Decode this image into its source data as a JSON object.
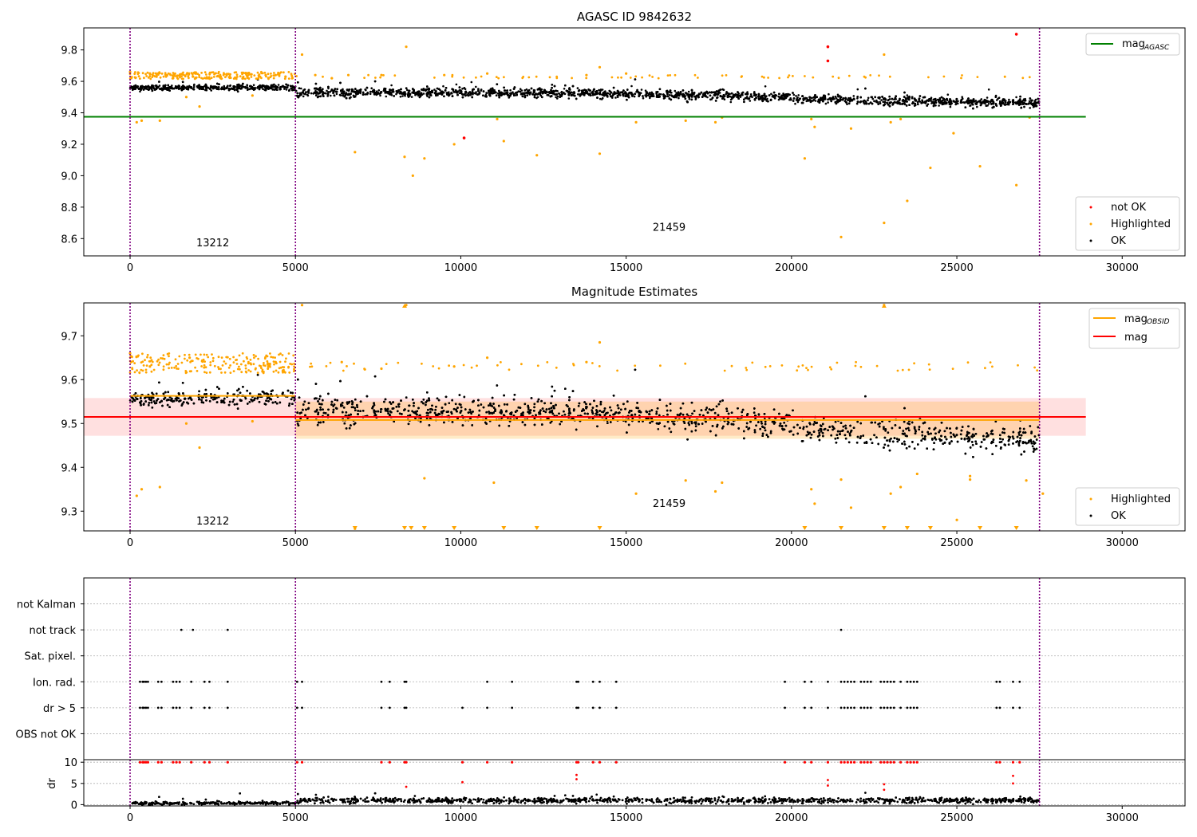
{
  "chart_data": [
    {
      "type": "scatter",
      "title": "AGASC ID 9842632",
      "xlim": [
        -1400,
        31900
      ],
      "ylim": [
        8.49,
        9.94
      ],
      "xticks": [
        0,
        5000,
        10000,
        15000,
        20000,
        25000,
        30000
      ],
      "yticks": [
        8.6,
        8.8,
        9.0,
        9.2,
        9.4,
        9.6,
        9.8
      ],
      "obsid_boundaries": [
        0,
        5000,
        27500
      ],
      "obsid_labels": [
        {
          "text": "13212",
          "x": 2500,
          "y": 8.55
        },
        {
          "text": "21459",
          "x": 16300,
          "y": 8.65
        }
      ],
      "hlines": [
        {
          "name": "mag_AGASC",
          "y": 9.375,
          "x": [
            -1400,
            28900
          ],
          "color": "#008000"
        }
      ],
      "legend_top": [
        {
          "label": "mag",
          "sub": "AGASC",
          "color": "#008000"
        }
      ],
      "legend_bottom": [
        {
          "label": "not OK",
          "color": "#ff0000"
        },
        {
          "label": "Highlighted",
          "color": "#ffa500"
        },
        {
          "label": "OK",
          "color": "#000000"
        }
      ],
      "ok_trend": [
        [
          0,
          9.56,
          0.012
        ],
        [
          5000,
          9.56,
          0.013
        ],
        [
          5050,
          9.53,
          0.02
        ],
        [
          11000,
          9.53,
          0.02
        ],
        [
          18000,
          9.51,
          0.02
        ],
        [
          22000,
          9.48,
          0.02
        ],
        [
          27500,
          9.46,
          0.02
        ]
      ],
      "highlighted_points": [
        [
          0,
          9.66
        ],
        [
          30,
          9.62
        ],
        [
          200,
          9.34
        ],
        [
          350,
          9.35
        ],
        [
          600,
          9.65
        ],
        [
          800,
          9.63
        ],
        [
          900,
          9.35
        ],
        [
          1100,
          9.64
        ],
        [
          1300,
          9.62
        ],
        [
          1500,
          9.64
        ],
        [
          1700,
          9.5
        ],
        [
          1900,
          9.63
        ],
        [
          2100,
          9.44
        ],
        [
          2300,
          9.62
        ],
        [
          2700,
          9.63
        ],
        [
          3200,
          9.62
        ],
        [
          3700,
          9.51
        ],
        [
          3900,
          9.63
        ],
        [
          4100,
          9.64
        ],
        [
          4400,
          9.64
        ],
        [
          4700,
          9.63
        ],
        [
          5200,
          9.77
        ],
        [
          5600,
          9.64
        ],
        [
          6100,
          9.62
        ],
        [
          6800,
          9.15
        ],
        [
          6600,
          9.64
        ],
        [
          7600,
          9.64
        ],
        [
          8300,
          9.12
        ],
        [
          8350,
          9.82
        ],
        [
          8550,
          9.0
        ],
        [
          8900,
          9.11
        ],
        [
          9500,
          9.64
        ],
        [
          9800,
          9.2
        ],
        [
          10800,
          9.65
        ],
        [
          11100,
          9.36
        ],
        [
          11300,
          9.22
        ],
        [
          12300,
          9.13
        ],
        [
          13800,
          9.64
        ],
        [
          14200,
          9.14
        ],
        [
          14200,
          9.69
        ],
        [
          15000,
          9.65
        ],
        [
          15300,
          9.34
        ],
        [
          16800,
          9.35
        ],
        [
          17700,
          9.34
        ],
        [
          17900,
          9.37
        ],
        [
          20400,
          9.11
        ],
        [
          20600,
          9.36
        ],
        [
          20700,
          9.31
        ],
        [
          21500,
          8.61
        ],
        [
          21800,
          9.3
        ],
        [
          22800,
          8.7
        ],
        [
          22800,
          9.77
        ],
        [
          23000,
          9.34
        ],
        [
          23300,
          9.36
        ],
        [
          23500,
          8.84
        ],
        [
          24200,
          9.05
        ],
        [
          24900,
          9.27
        ],
        [
          25700,
          9.06
        ],
        [
          26800,
          8.94
        ],
        [
          27200,
          9.37
        ]
      ],
      "not_ok_points": [
        [
          10100,
          9.24
        ],
        [
          21100,
          9.82
        ],
        [
          21100,
          9.73
        ],
        [
          26800,
          9.9
        ]
      ]
    },
    {
      "type": "scatter",
      "title": "Magnitude Estimates",
      "xlim": [
        -1400,
        31900
      ],
      "ylim": [
        9.255,
        9.775
      ],
      "xticks": [
        0,
        5000,
        10000,
        15000,
        20000,
        25000,
        30000
      ],
      "yticks": [
        9.3,
        9.4,
        9.5,
        9.6,
        9.7
      ],
      "obsid_boundaries": [
        0,
        5000,
        27500
      ],
      "obsid_labels": [
        {
          "text": "13212",
          "x": 2500,
          "y": 9.27
        },
        {
          "text": "21459",
          "x": 16300,
          "y": 9.31
        }
      ],
      "hlines": [
        {
          "name": "mag",
          "y": 9.515,
          "x": [
            -1400,
            28900
          ],
          "color": "#ff0000"
        },
        {
          "name": "mag_OBSID 13212",
          "y": 9.563,
          "x": [
            0,
            5000
          ],
          "color": "#ffa500"
        },
        {
          "name": "mag_OBSID 21459",
          "y": 9.508,
          "x": [
            5000,
            27500
          ],
          "color": "#ffa500"
        }
      ],
      "bands": [
        {
          "y": [
            9.472,
            9.558
          ],
          "x": [
            -1400,
            28900
          ],
          "color": "#ff0000",
          "opacity": 0.12
        },
        {
          "y": [
            9.465,
            9.55
          ],
          "x": [
            5000,
            27500
          ],
          "color": "#ffa500",
          "opacity": 0.22
        }
      ],
      "legend_top": [
        {
          "label": "mag",
          "sub": "OBSID",
          "color": "#ffa500"
        },
        {
          "label": "mag",
          "sub": "",
          "color": "#ff0000"
        }
      ],
      "legend_bottom": [
        {
          "label": "Highlighted",
          "color": "#ffa500"
        },
        {
          "label": "OK",
          "color": "#000000"
        }
      ],
      "ok_trend": [
        [
          0,
          9.555,
          0.012
        ],
        [
          5000,
          9.56,
          0.013
        ],
        [
          5050,
          9.53,
          0.022
        ],
        [
          11000,
          9.53,
          0.022
        ],
        [
          18000,
          9.51,
          0.022
        ],
        [
          22000,
          9.48,
          0.022
        ],
        [
          27500,
          9.46,
          0.022
        ]
      ],
      "highlighted_points": [
        [
          0,
          9.66
        ],
        [
          30,
          9.64
        ],
        [
          200,
          9.335
        ],
        [
          350,
          9.35
        ],
        [
          600,
          9.63
        ],
        [
          900,
          9.355
        ],
        [
          1700,
          9.5
        ],
        [
          1800,
          9.65
        ],
        [
          2100,
          9.445
        ],
        [
          3700,
          9.505
        ],
        [
          4400,
          9.64
        ],
        [
          5200,
          9.77
        ],
        [
          6400,
          9.64
        ],
        [
          6800,
          9.26
        ],
        [
          7600,
          9.625
        ],
        [
          8350,
          9.77
        ],
        [
          8900,
          9.375
        ],
        [
          9800,
          9.63
        ],
        [
          10800,
          9.65
        ],
        [
          11000,
          9.365
        ],
        [
          13800,
          9.64
        ],
        [
          14200,
          9.685
        ],
        [
          15300,
          9.34
        ],
        [
          16800,
          9.37
        ],
        [
          17700,
          9.345
        ],
        [
          17900,
          9.365
        ],
        [
          20600,
          9.35
        ],
        [
          20700,
          9.317
        ],
        [
          21500,
          9.372
        ],
        [
          21800,
          9.308
        ],
        [
          22800,
          9.77
        ],
        [
          23000,
          9.34
        ],
        [
          23300,
          9.355
        ],
        [
          23800,
          9.385
        ],
        [
          25000,
          9.28
        ],
        [
          25400,
          9.38
        ],
        [
          25400,
          9.372
        ],
        [
          27100,
          9.37
        ],
        [
          27600,
          9.34
        ]
      ],
      "below_markers": [
        6800,
        8300,
        8500,
        8900,
        9800,
        11300,
        12300,
        14200,
        20400,
        21500,
        22800,
        23500,
        24200,
        25700,
        26800
      ],
      "above_markers": [
        8300,
        22800
      ]
    },
    {
      "type": "scatter",
      "title": "",
      "xlim": [
        -1400,
        31900
      ],
      "ylim": [
        -11.2,
        69.5
      ],
      "xticks": [
        0,
        5000,
        10000,
        15000,
        20000,
        25000,
        30000
      ],
      "obsid_boundaries": [
        0,
        5000,
        27500
      ],
      "flag_rows": [
        {
          "label": "not Kalman",
          "y": 60
        },
        {
          "label": "not track",
          "y": 50
        },
        {
          "label": "Sat. pixel.",
          "y": 40
        },
        {
          "label": "Ion. rad.",
          "y": 30
        },
        {
          "label": "dr > 5",
          "y": 20
        },
        {
          "label": "OBS not OK",
          "y": 10
        }
      ],
      "not_track_x": [
        1550,
        1900,
        2950,
        21500
      ],
      "ion_rad_x": [
        300,
        380,
        420,
        480,
        540,
        850,
        950,
        1300,
        1400,
        1500,
        1850,
        2250,
        2400,
        2950,
        5050,
        5200,
        7600,
        7850,
        8300,
        8350,
        10800,
        11550,
        13500,
        13550,
        14000,
        14200,
        14700,
        19800,
        20400,
        20600,
        21100,
        21500,
        21600,
        21700,
        21800,
        21900,
        22100,
        22200,
        22300,
        22400,
        22700,
        22800,
        22900,
        23000,
        23100,
        23300,
        23500,
        23600,
        23700,
        23800,
        26200,
        26300,
        26700,
        26900
      ],
      "dr_gt5_x": [
        300,
        380,
        420,
        480,
        540,
        850,
        950,
        1300,
        1400,
        1500,
        1850,
        2250,
        2400,
        2950,
        5050,
        5200,
        7600,
        7850,
        8300,
        8350,
        10050,
        10800,
        11550,
        13500,
        13550,
        14000,
        14200,
        14700,
        19800,
        20400,
        20600,
        21100,
        21500,
        21600,
        21700,
        21800,
        21900,
        22100,
        22200,
        22300,
        22400,
        22700,
        22800,
        22900,
        23000,
        23100,
        23300,
        23500,
        23600,
        23700,
        23800,
        26200,
        26300,
        26700,
        26900
      ],
      "dr_axis": {
        "ylabel": "dr",
        "ylim": [
          -0.3,
          10.6
        ],
        "yticks": [
          0,
          5,
          10
        ],
        "flagged_dr": 10,
        "extra_red_points": [
          [
            10050,
            5.3
          ],
          [
            13500,
            6.0
          ],
          [
            13500,
            7.0
          ],
          [
            21100,
            5.8
          ],
          [
            21100,
            4.5
          ],
          [
            22800,
            4.8
          ],
          [
            22800,
            3.5
          ],
          [
            26700,
            6.8
          ],
          [
            26700,
            5.0
          ],
          [
            8350,
            4.2
          ]
        ]
      }
    }
  ]
}
